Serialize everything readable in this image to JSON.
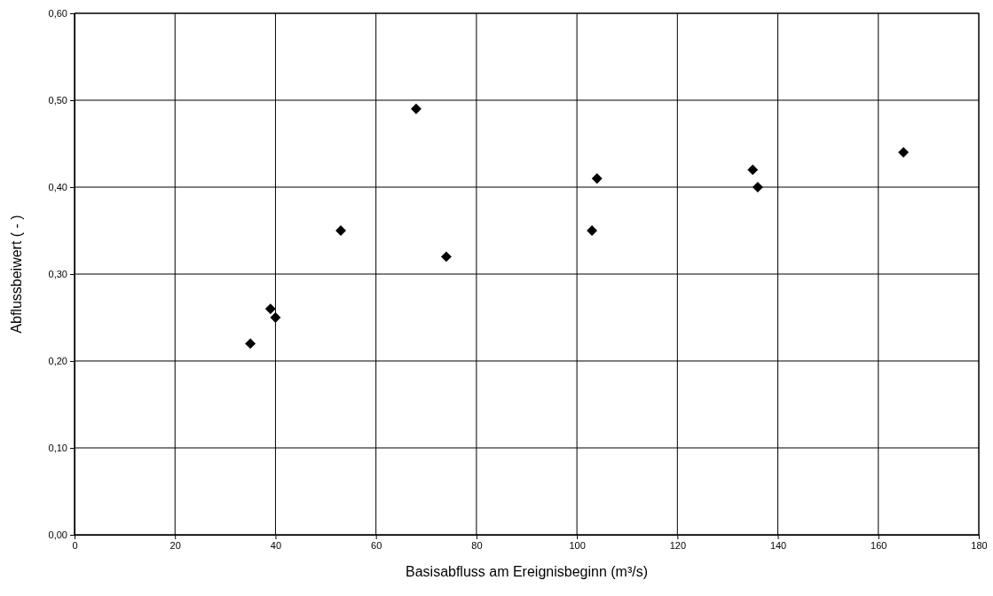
{
  "chart_data": {
    "type": "scatter",
    "xlabel": "Basisabfluss am Ereignisbeginn (m³/s)",
    "ylabel": "Abflussbeiwert ( - )",
    "x": [
      35,
      39,
      40,
      53,
      68,
      74,
      103,
      104,
      135,
      136,
      165
    ],
    "values": [
      0.22,
      0.26,
      0.25,
      0.35,
      0.49,
      0.32,
      0.35,
      0.41,
      0.42,
      0.4,
      0.44
    ],
    "color": "#000000",
    "marker": "diamond",
    "grid": true,
    "xlim": [
      0,
      180
    ],
    "xticks": [
      0,
      20,
      40,
      60,
      80,
      100,
      120,
      140,
      160,
      180
    ],
    "ylim": [
      0,
      0.6
    ],
    "yticks": [
      {
        "value": 0,
        "label": "0,00"
      },
      {
        "value": 0.1,
        "label": "0,10"
      },
      {
        "value": 0.2,
        "label": "0,20"
      },
      {
        "value": 0.3,
        "label": "0,30"
      },
      {
        "value": 0.4,
        "label": "0,40"
      },
      {
        "value": 0.5,
        "label": "0,50"
      },
      {
        "value": 0.6,
        "label": "0,60"
      }
    ]
  }
}
